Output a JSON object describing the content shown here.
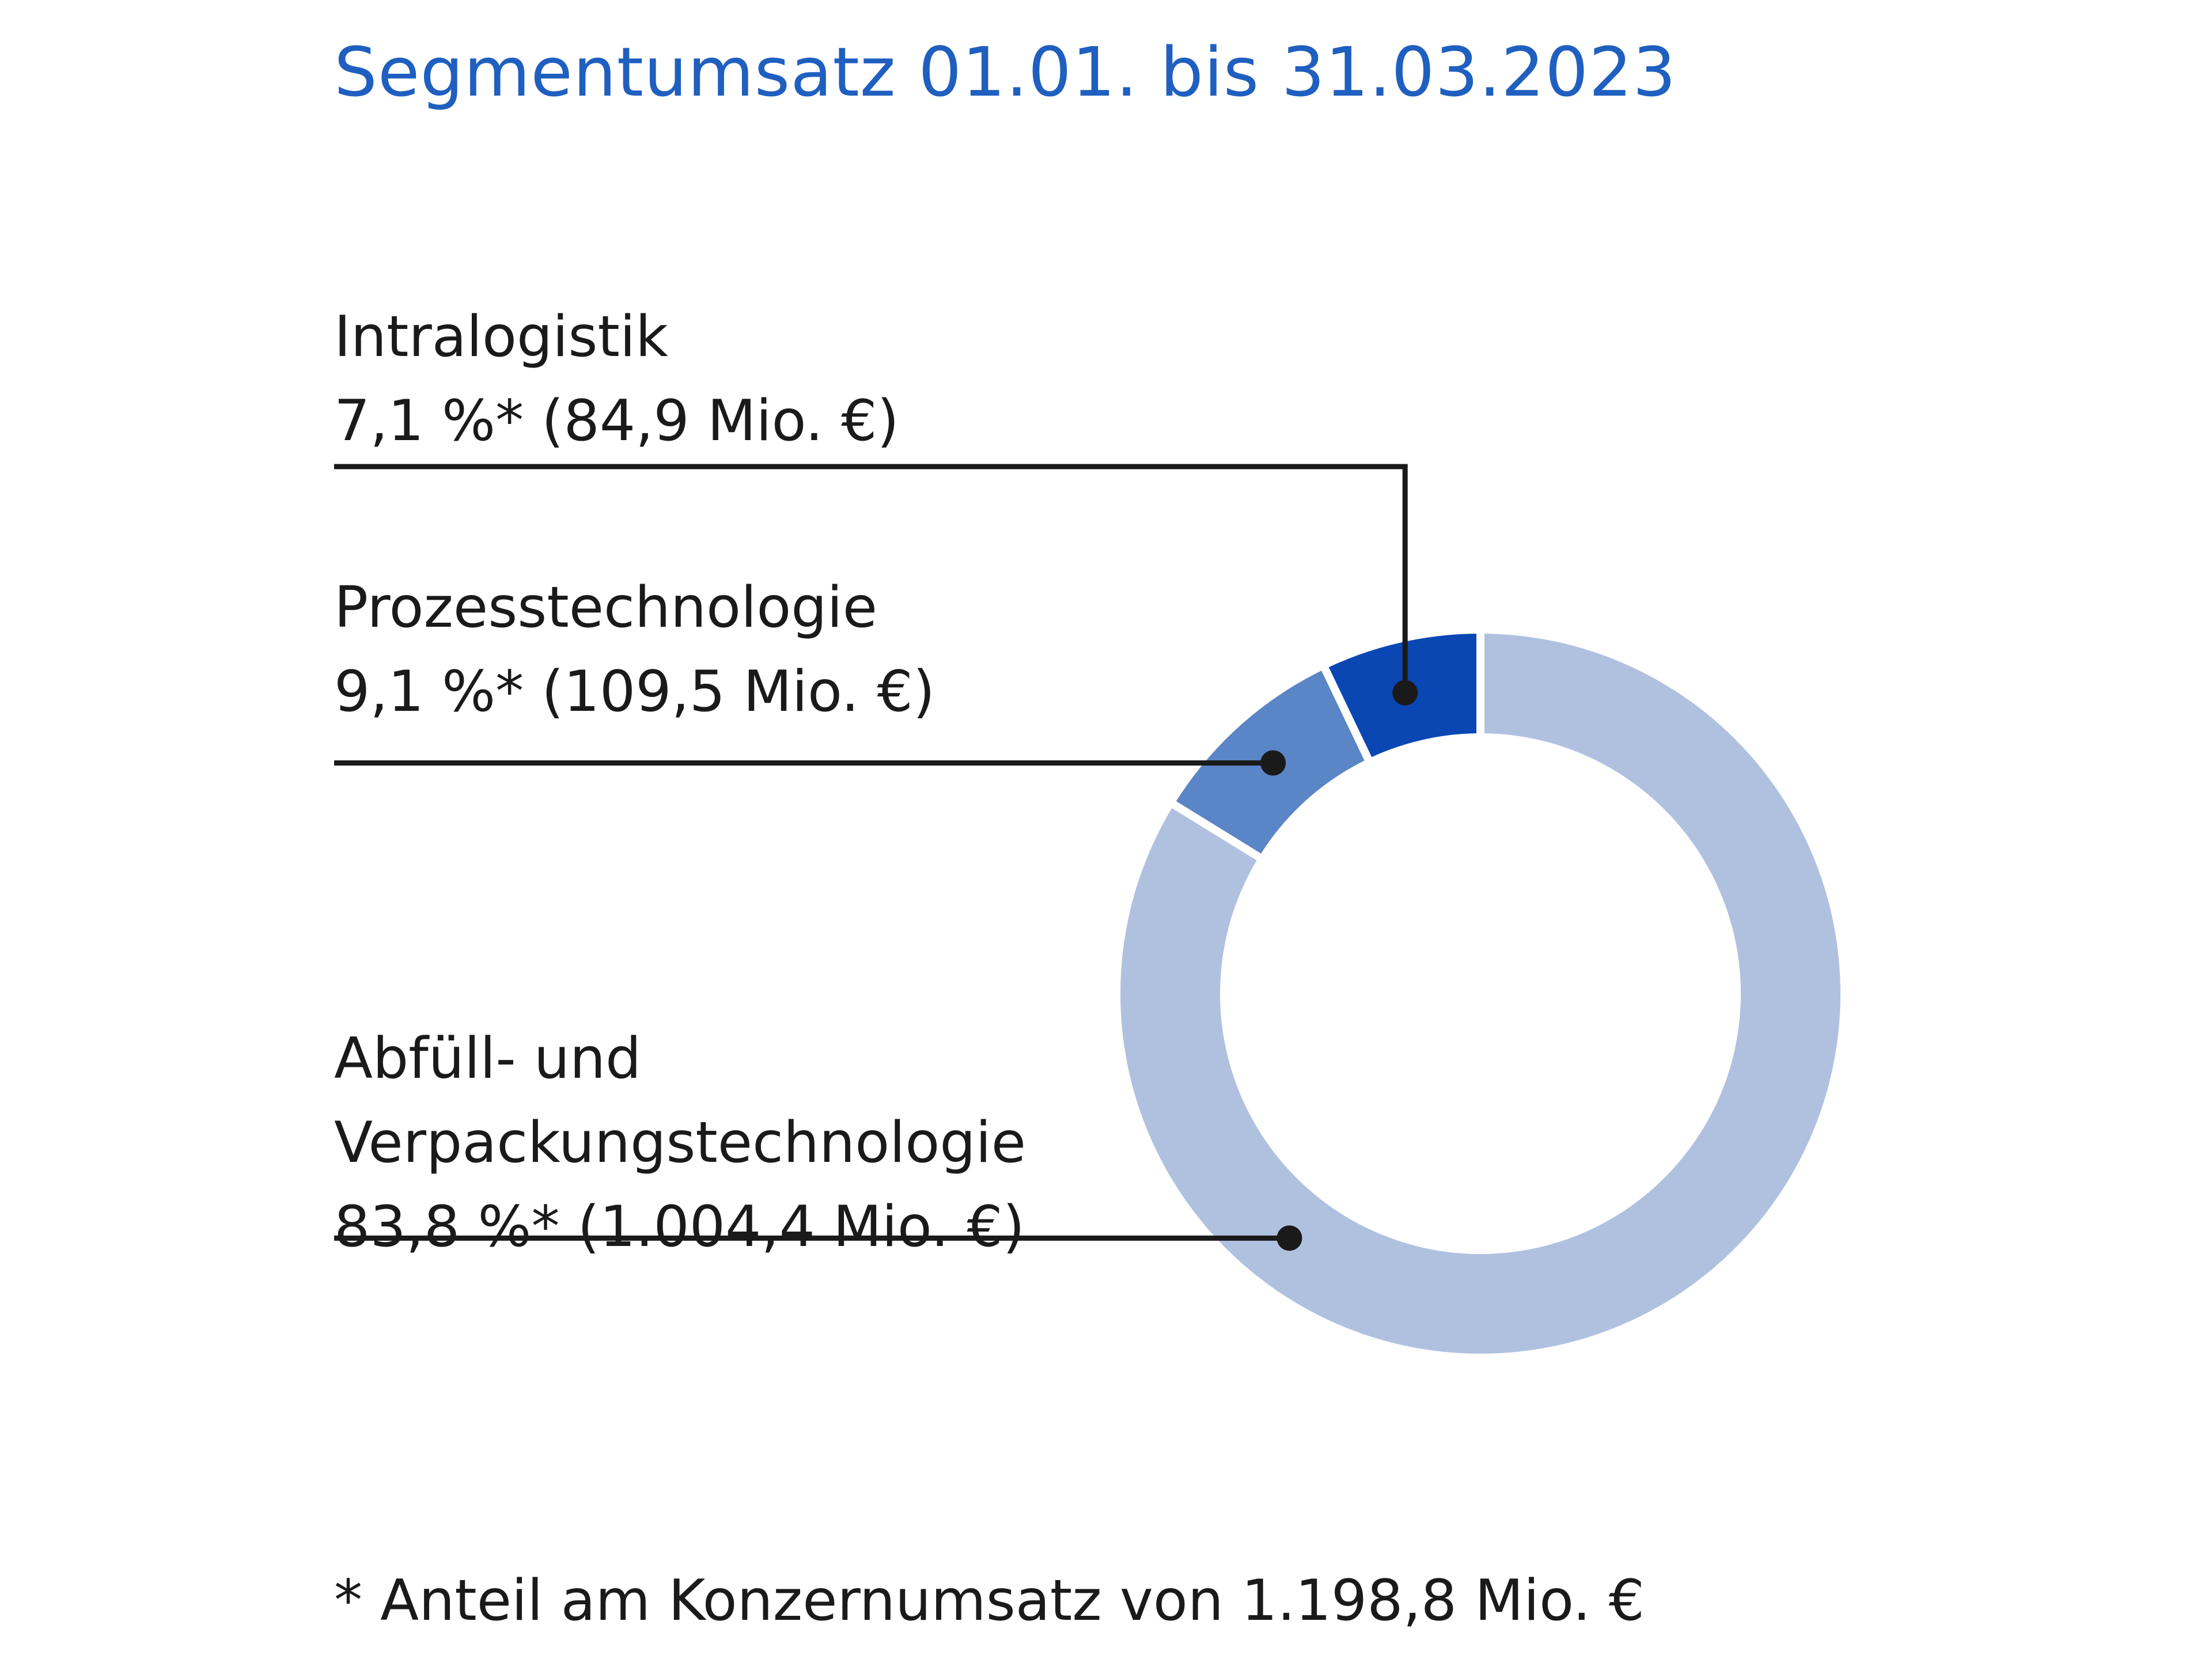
{
  "title": "Segmentumsatz 01.01. bis 31.03.2023",
  "colors": {
    "title": "#1f5fbf",
    "intralogistik": "#0a47b3",
    "prozesstechnologie": "#5a85c6",
    "abfuell": "#b0c1e0",
    "leader": "#1a1a1a"
  },
  "chart_data": {
    "type": "pie",
    "variant": "donut",
    "title": "Segmentumsatz 01.01. bis 31.03.2023",
    "unit": "Mio. €",
    "total": 1198.8,
    "slices": [
      {
        "name": "Abfüll- und Verpackungstechnologie",
        "percent": 83.8,
        "value": 1004.4,
        "label_lines": [
          "Abfüll- und",
          "Verpackungstechnologie",
          "83,8 %* (1.004,4 Mio. €)"
        ]
      },
      {
        "name": "Prozesstechnologie",
        "percent": 9.1,
        "value": 109.5,
        "label_lines": [
          "Prozesstechnologie",
          "9,1 %* (109,5 Mio. €)"
        ]
      },
      {
        "name": "Intralogistik",
        "percent": 7.1,
        "value": 84.9,
        "label_lines": [
          "Intralogistik",
          "7,1 %* (84,9 Mio. €)"
        ]
      }
    ]
  },
  "footnote": "* Anteil am Konzernumsatz von 1.198,8 Mio. €"
}
